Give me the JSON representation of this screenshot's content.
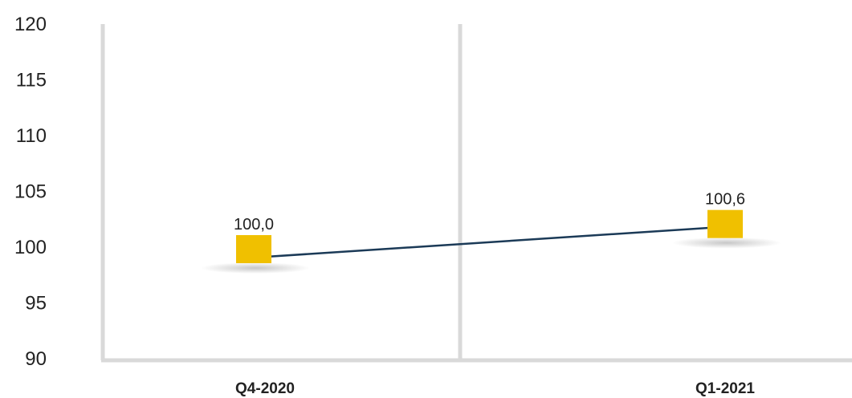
{
  "chart_data": {
    "type": "line",
    "title": "",
    "xlabel": "",
    "ylabel": "",
    "categories": [
      "Q4-2020",
      "Q1-2021"
    ],
    "series": [
      {
        "values": [
          100.0,
          100.6
        ],
        "data_labels": [
          "100,0",
          "100,6"
        ]
      }
    ],
    "ylim": [
      90,
      120
    ],
    "y_ticks": [
      "90",
      "95",
      "100",
      "105",
      "110",
      "115",
      "120"
    ],
    "grid": "vertical",
    "legend": "none",
    "colors": {
      "line": "#1b3a57",
      "marker": "#f0c000",
      "axis": "#d9d9d9",
      "text": "#222222"
    }
  }
}
